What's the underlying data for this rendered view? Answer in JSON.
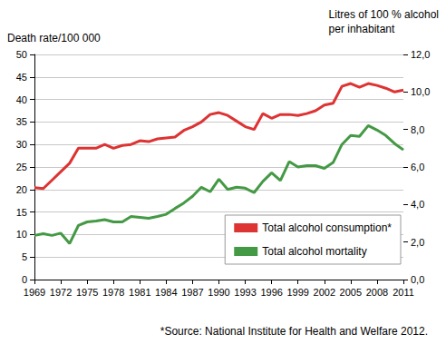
{
  "chart_data": {
    "type": "line",
    "ylabel": "Death rate/100 000",
    "y2label": "Litres of 100 % alcohol\nper inhabitant",
    "annotation": "*Source: National Institute for Health and Welfare 2012.",
    "categories": [
      "1969",
      null,
      null,
      "1972",
      null,
      null,
      "1975",
      null,
      null,
      "1978",
      null,
      null,
      "1981",
      null,
      null,
      "1984",
      null,
      null,
      "1987",
      null,
      null,
      "1990",
      null,
      null,
      "1993",
      null,
      null,
      "1996",
      null,
      null,
      "1999",
      null,
      null,
      "2002",
      null,
      null,
      "2005",
      null,
      null,
      "2008",
      null,
      null,
      "2011"
    ],
    "series": [
      {
        "name": "Total alcohol consumption*",
        "color": "#dd3333",
        "axis": "y2",
        "values": [
          4.9,
          4.85,
          5.3,
          5.75,
          6.2,
          7.0,
          7.0,
          7.0,
          7.2,
          7.0,
          7.15,
          7.2,
          7.4,
          7.35,
          7.5,
          7.55,
          7.6,
          7.95,
          8.15,
          8.4,
          8.8,
          8.9,
          8.75,
          8.45,
          8.15,
          8.0,
          8.85,
          8.6,
          8.8,
          8.8,
          8.75,
          8.85,
          9.0,
          9.3,
          9.4,
          10.3,
          10.45,
          10.25,
          10.45,
          10.35,
          10.2,
          10.0,
          10.1
        ]
      },
      {
        "name": "Total alcohol mortality",
        "color": "#449944",
        "values": [
          9.8,
          10.2,
          9.8,
          10.3,
          8.0,
          12.0,
          12.8,
          13.0,
          13.3,
          12.8,
          12.8,
          14.0,
          13.8,
          13.6,
          14.0,
          14.5,
          15.8,
          17.0,
          18.5,
          20.5,
          19.5,
          22.3,
          20.0,
          20.5,
          20.3,
          19.3,
          21.8,
          23.7,
          22.0,
          26.2,
          25.0,
          25.3,
          25.3,
          24.7,
          26.0,
          30.0,
          32.0,
          31.8,
          34.2,
          33.2,
          32.0,
          30.2,
          28.8
        ]
      }
    ],
    "ylim": [
      0,
      50
    ],
    "yticks": [
      0,
      5,
      10,
      15,
      20,
      25,
      30,
      35,
      40,
      45,
      50
    ],
    "y2lim": [
      0,
      12
    ],
    "y2ticks": [
      {
        "value": 0,
        "label": "0,0"
      },
      {
        "value": 2,
        "label": "2,0"
      },
      {
        "value": 4,
        "label": "4,0"
      },
      {
        "value": 6,
        "label": "6,0"
      },
      {
        "value": 8,
        "label": "8,0"
      },
      {
        "value": 10,
        "label": "10,0"
      },
      {
        "value": 12,
        "label": "12,0"
      }
    ],
    "grid": true,
    "legend": "lower right"
  }
}
